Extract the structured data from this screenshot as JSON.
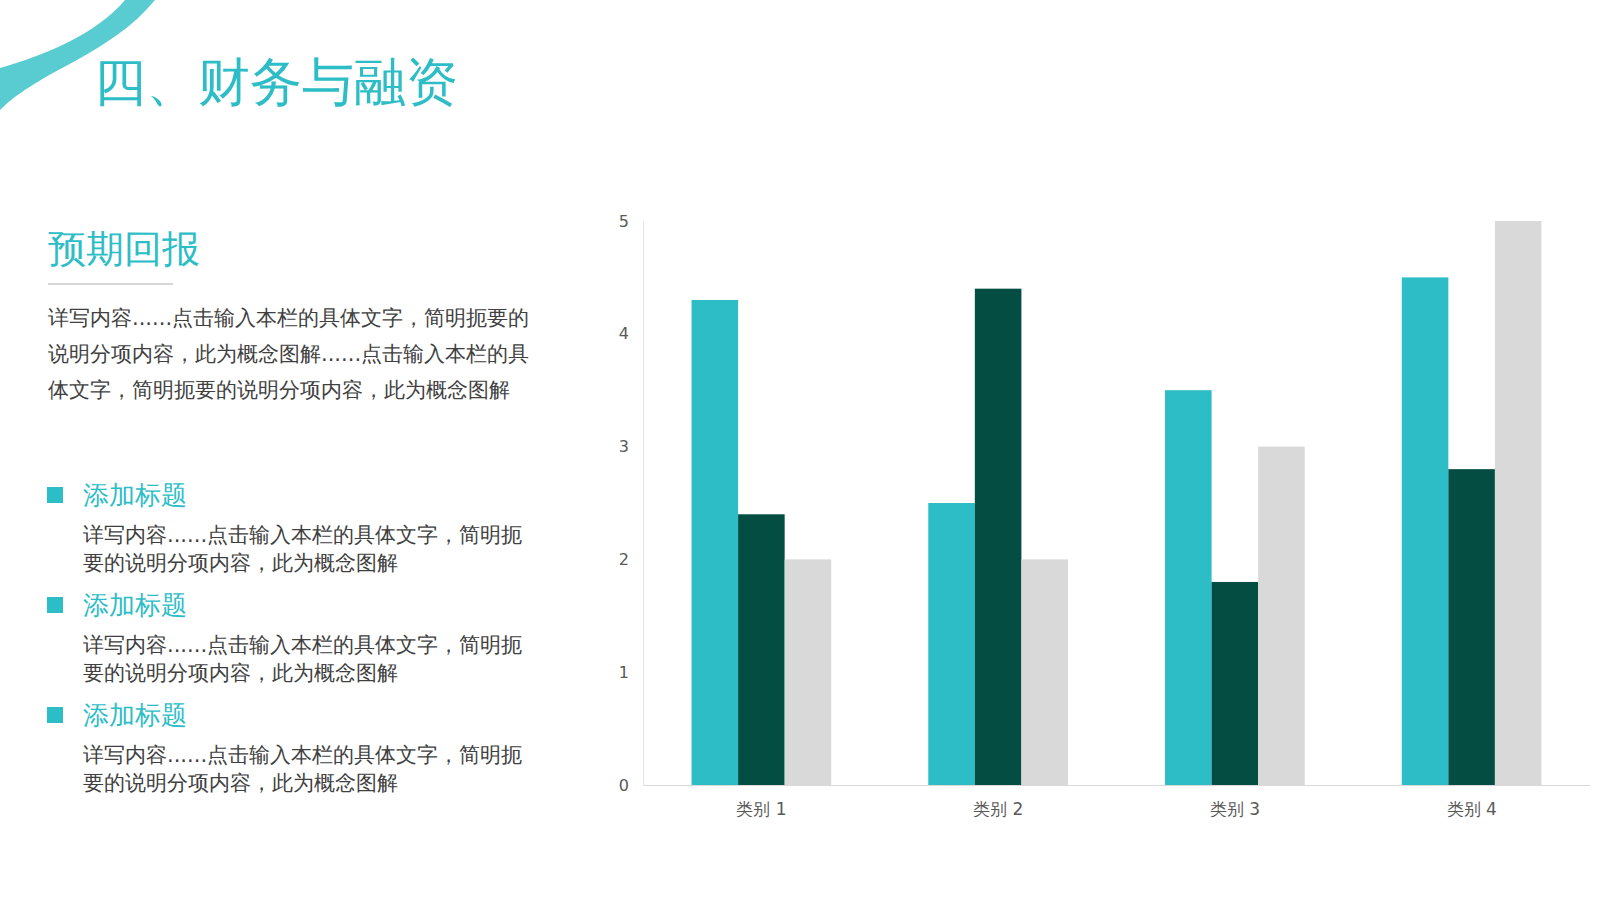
{
  "title": "四、财务与融资",
  "section": {
    "heading": "预期回报",
    "text": "详写内容......点击输入本栏的具体文字，简明扼要的说明分项内容，此为概念图解......点击输入本栏的具体文字，简明扼要的说明分项内容，此为概念图解"
  },
  "items": [
    {
      "heading": "添加标题",
      "text": "详写内容......点击输入本栏的具体文字，简明扼要的说明分项内容，此为概念图解"
    },
    {
      "heading": "添加标题",
      "text": "详写内容......点击输入本栏的具体文字，简明扼要的说明分项内容，此为概念图解"
    },
    {
      "heading": "添加标题",
      "text": "详写内容......点击输入本栏的具体文字，简明扼要的说明分项内容，此为概念图解"
    }
  ],
  "chart_data": {
    "type": "bar",
    "categories": [
      "类别 1",
      "类别 2",
      "类别 3",
      "类别 4"
    ],
    "series": [
      {
        "color": "#2dbdc6",
        "values": [
          4.3,
          2.5,
          3.5,
          4.5
        ]
      },
      {
        "color": "#034d42",
        "values": [
          2.4,
          4.4,
          1.8,
          2.8
        ]
      },
      {
        "color": "#d9d9d9",
        "values": [
          2.0,
          2.0,
          3.0,
          5.0
        ]
      }
    ],
    "ylim": [
      0,
      5
    ],
    "yticks": [
      0,
      1,
      2,
      3,
      4,
      5
    ],
    "grid": false
  }
}
